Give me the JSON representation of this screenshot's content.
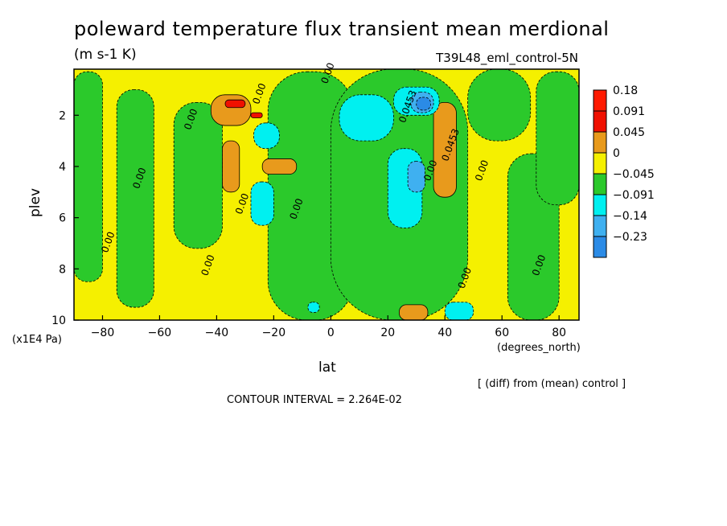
{
  "title": "poleward temperature flux transient mean merdional",
  "units": "(m s-1 K)",
  "experiment": "T39L48_eml_control-5N",
  "ylabel": "plev",
  "yunit": "(x1E4 Pa)",
  "xlabel": "lat",
  "xunit": "(degrees_north)",
  "note": "[ (diff) from (mean) control ]",
  "contour_interval": "CONTOUR INTERVAL = 2.264E-02",
  "colors": {
    "c_lt_m023": "#1f5fe0",
    "c_m023_m014": "#2b8be6",
    "c_m014_m0091": "#3fb0f0",
    "c_m0091_m0045": "#00f0f0",
    "c_m0045_0": "#2bc92b",
    "c_0_0045": "#f5f000",
    "c_0045_0091": "#e89a1c",
    "c_0091_018": "#f01000",
    "c_gt_018": "#ff1a00"
  },
  "chart_data": {
    "type": "heatmap",
    "title": "poleward temperature flux transient mean merdional",
    "xlabel": "lat",
    "ylabel": "plev",
    "xlim": [
      -90,
      87
    ],
    "ylim": [
      10,
      0.2
    ],
    "x_ticks": [
      -80,
      -60,
      -40,
      -20,
      0,
      20,
      40,
      60,
      80
    ],
    "y_ticks": [
      2,
      4,
      6,
      8,
      10
    ],
    "legend_levels": [
      "0.18",
      "0.091",
      "0.045",
      "0",
      "−0.045",
      "−0.091",
      "−0.14",
      "−0.23"
    ],
    "contour_labels": [
      {
        "text": "0.00",
        "x": -24,
        "y": 1.2
      },
      {
        "text": "0.00",
        "x": -48,
        "y": 2.2
      },
      {
        "text": "0.00",
        "x": -66,
        "y": 4.5
      },
      {
        "text": "0.00",
        "x": -77,
        "y": 7.0
      },
      {
        "text": "0.00",
        "x": -42,
        "y": 7.9
      },
      {
        "text": "0.00",
        "x": -30,
        "y": 5.5
      },
      {
        "text": "0.00",
        "x": -11,
        "y": 5.7
      },
      {
        "text": "0.00",
        "x": 0,
        "y": 0.4
      },
      {
        "text": "0.0453",
        "x": 28,
        "y": 1.7
      },
      {
        "text": "0.0453",
        "x": 43,
        "y": 3.2
      },
      {
        "text": "0.00",
        "x": 36,
        "y": 4.2
      },
      {
        "text": "0.00",
        "x": 54,
        "y": 4.2
      },
      {
        "text": "0.00",
        "x": 48,
        "y": 8.4
      },
      {
        "text": "0.00",
        "x": 74,
        "y": 7.9
      }
    ],
    "regions": [
      {
        "level": "0_0045",
        "lat": [
          -90,
          87
        ],
        "plev": [
          0.2,
          10
        ],
        "note": "background"
      },
      {
        "level": "m0045_0",
        "lat": [
          -90,
          -80
        ],
        "plev": [
          0.3,
          8.5
        ]
      },
      {
        "level": "m0045_0",
        "lat": [
          -75,
          -62
        ],
        "plev": [
          1.0,
          9.5
        ]
      },
      {
        "level": "m0045_0",
        "lat": [
          -55,
          -38
        ],
        "plev": [
          1.5,
          7.2
        ]
      },
      {
        "level": "m0045_0",
        "lat": [
          -22,
          8
        ],
        "plev": [
          0.3,
          10
        ]
      },
      {
        "level": "m0045_0",
        "lat": [
          0,
          48
        ],
        "plev": [
          0.2,
          10
        ]
      },
      {
        "level": "m0045_0",
        "lat": [
          48,
          70
        ],
        "plev": [
          0.2,
          3.0
        ]
      },
      {
        "level": "m0045_0",
        "lat": [
          62,
          80
        ],
        "plev": [
          3.5,
          10
        ]
      },
      {
        "level": "m0045_0",
        "lat": [
          72,
          87
        ],
        "plev": [
          0.3,
          5.5
        ]
      },
      {
        "level": "0045_0091",
        "lat": [
          -42,
          -28
        ],
        "plev": [
          1.2,
          2.4
        ]
      },
      {
        "level": "0091_018",
        "lat": [
          -37,
          -30
        ],
        "plev": [
          1.4,
          1.7
        ]
      },
      {
        "level": "0091_018",
        "lat": [
          -28,
          -24
        ],
        "plev": [
          1.9,
          2.1
        ]
      },
      {
        "level": "0045_0091",
        "lat": [
          -38,
          -32
        ],
        "plev": [
          3.0,
          5.0
        ]
      },
      {
        "level": "0045_0091",
        "lat": [
          -24,
          -12
        ],
        "plev": [
          3.7,
          4.3
        ]
      },
      {
        "level": "0045_0091",
        "lat": [
          36,
          44
        ],
        "plev": [
          1.5,
          5.2
        ]
      },
      {
        "level": "0045_0091",
        "lat": [
          24,
          34
        ],
        "plev": [
          9.4,
          10
        ]
      },
      {
        "level": "m0091_m0045",
        "lat": [
          -27,
          -18
        ],
        "plev": [
          2.3,
          3.3
        ]
      },
      {
        "level": "m0091_m0045",
        "lat": [
          -28,
          -20
        ],
        "plev": [
          4.6,
          6.3
        ]
      },
      {
        "level": "m0091_m0045",
        "lat": [
          3,
          22
        ],
        "plev": [
          1.2,
          3.0
        ]
      },
      {
        "level": "m0091_m0045",
        "lat": [
          20,
          32
        ],
        "plev": [
          3.3,
          6.4
        ]
      },
      {
        "level": "m0091_m0045",
        "lat": [
          22,
          38
        ],
        "plev": [
          0.9,
          2.0
        ]
      },
      {
        "level": "m0091_m0045",
        "lat": [
          40,
          50
        ],
        "plev": [
          9.3,
          10
        ]
      },
      {
        "level": "m0091_m0045",
        "lat": [
          -8,
          -4
        ],
        "plev": [
          9.3,
          9.7
        ]
      },
      {
        "level": "m014_m0091",
        "lat": [
          27,
          33
        ],
        "plev": [
          3.8,
          5.0
        ]
      },
      {
        "level": "m014_m0091",
        "lat": [
          28,
          36
        ],
        "plev": [
          1.1,
          1.9
        ]
      },
      {
        "level": "m023_m014",
        "lat": [
          30,
          35
        ],
        "plev": [
          1.3,
          1.8
        ]
      }
    ]
  }
}
